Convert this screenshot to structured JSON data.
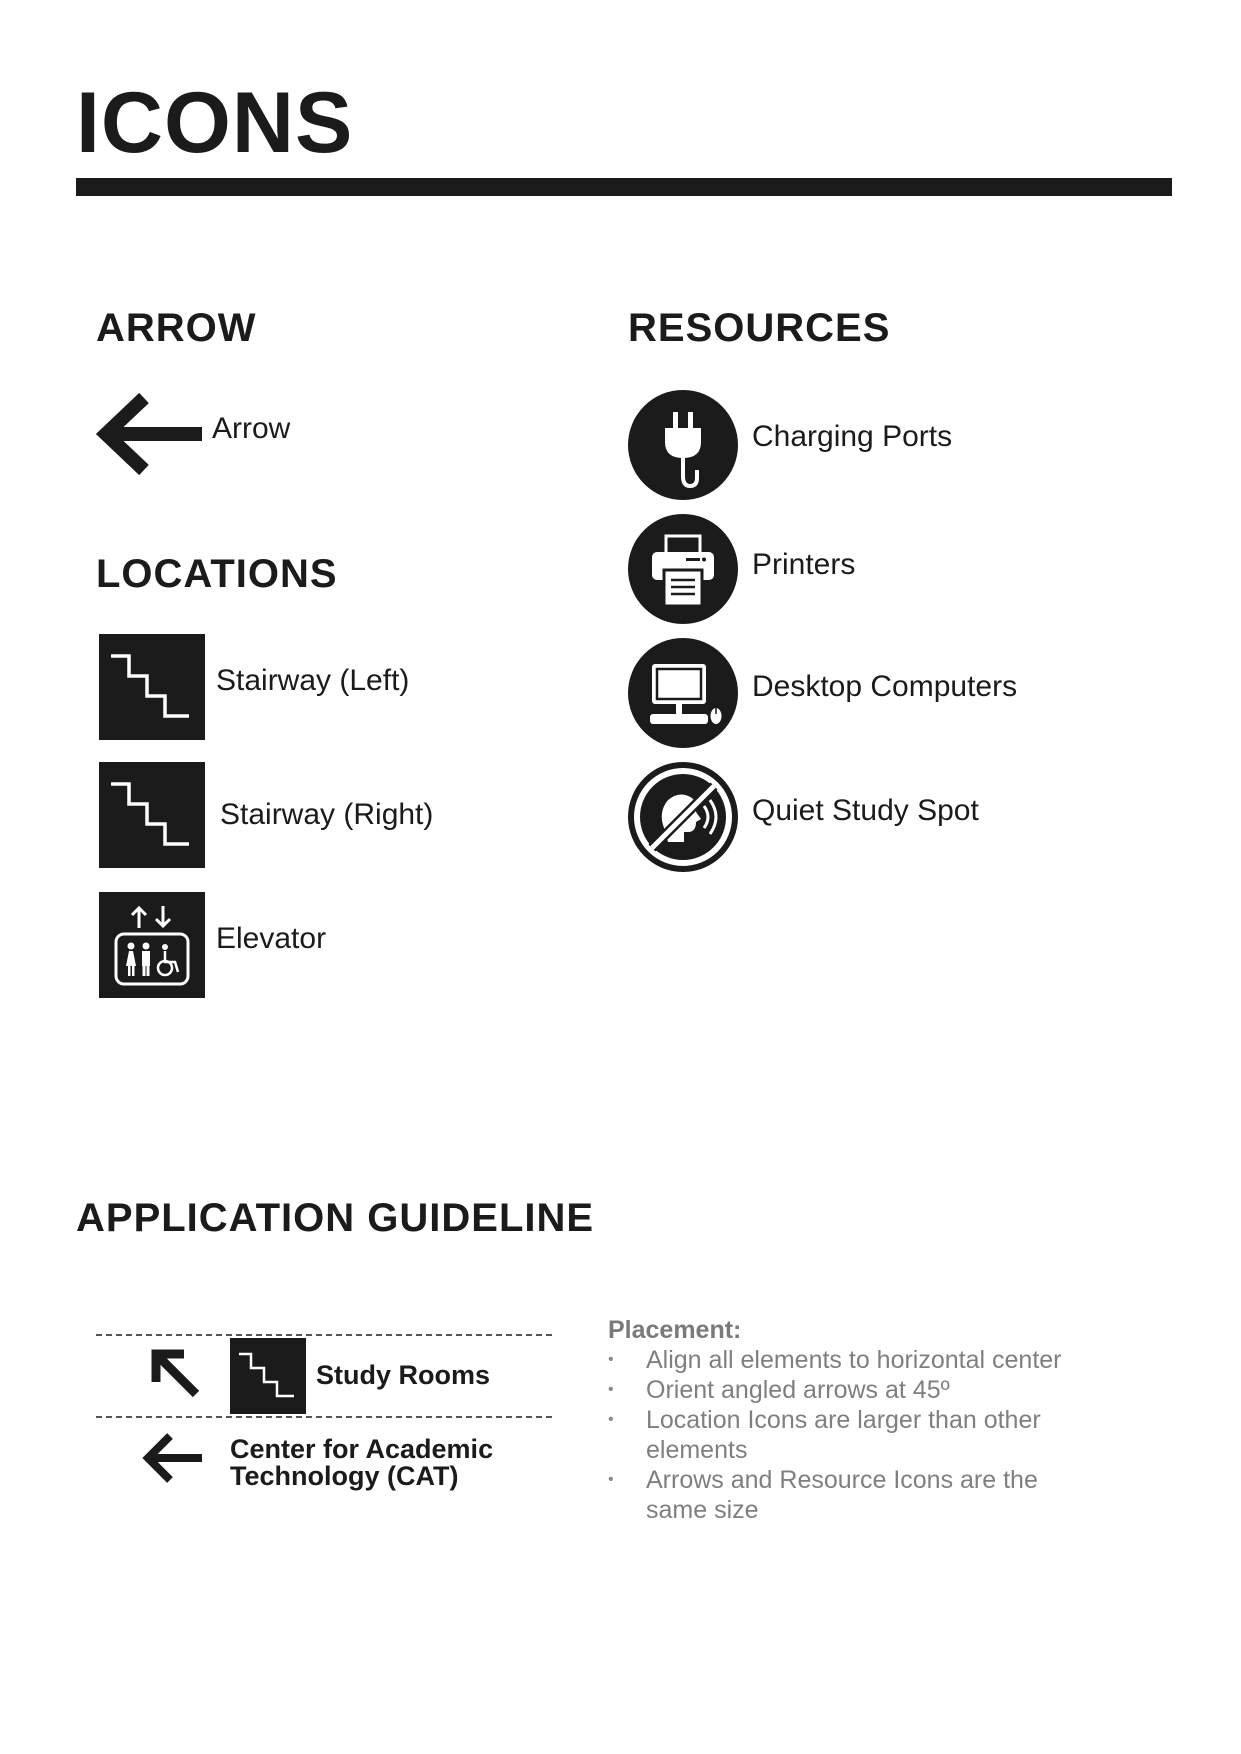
{
  "page_title": "ICONS",
  "arrow_section": {
    "heading": "ARROW",
    "item_label": "Arrow"
  },
  "locations_section": {
    "heading": "LOCATIONS",
    "items": [
      {
        "label": "Stairway (Left)",
        "icon": "stairs-left-icon"
      },
      {
        "label": "Stairway (Right)",
        "icon": "stairs-right-icon"
      },
      {
        "label": "Elevator",
        "icon": "elevator-icon"
      }
    ]
  },
  "resources_section": {
    "heading": "RESOURCES",
    "items": [
      {
        "label": "Charging Ports",
        "icon": "plug-icon"
      },
      {
        "label": "Printers",
        "icon": "printer-icon"
      },
      {
        "label": "Desktop Computers",
        "icon": "desktop-computer-icon"
      },
      {
        "label": "Quiet Study Spot",
        "icon": "no-talking-icon"
      }
    ]
  },
  "guideline_section": {
    "heading": "APPLICATION GUIDELINE",
    "example_sign": {
      "row1_label": "Study Rooms",
      "row2_line1": "Center for Academic",
      "row2_line2": "Technology (CAT)"
    },
    "placement": {
      "title": "Placement:",
      "bullets": [
        "Align all elements to horizontal center",
        "Orient angled arrows at 45º",
        "Location Icons are larger than other elements",
        "Arrows and Resource Icons are the same size"
      ]
    }
  },
  "colors": {
    "ink": "#1b1b1b",
    "muted_text": "#7f7f7f",
    "background": "#ffffff"
  }
}
